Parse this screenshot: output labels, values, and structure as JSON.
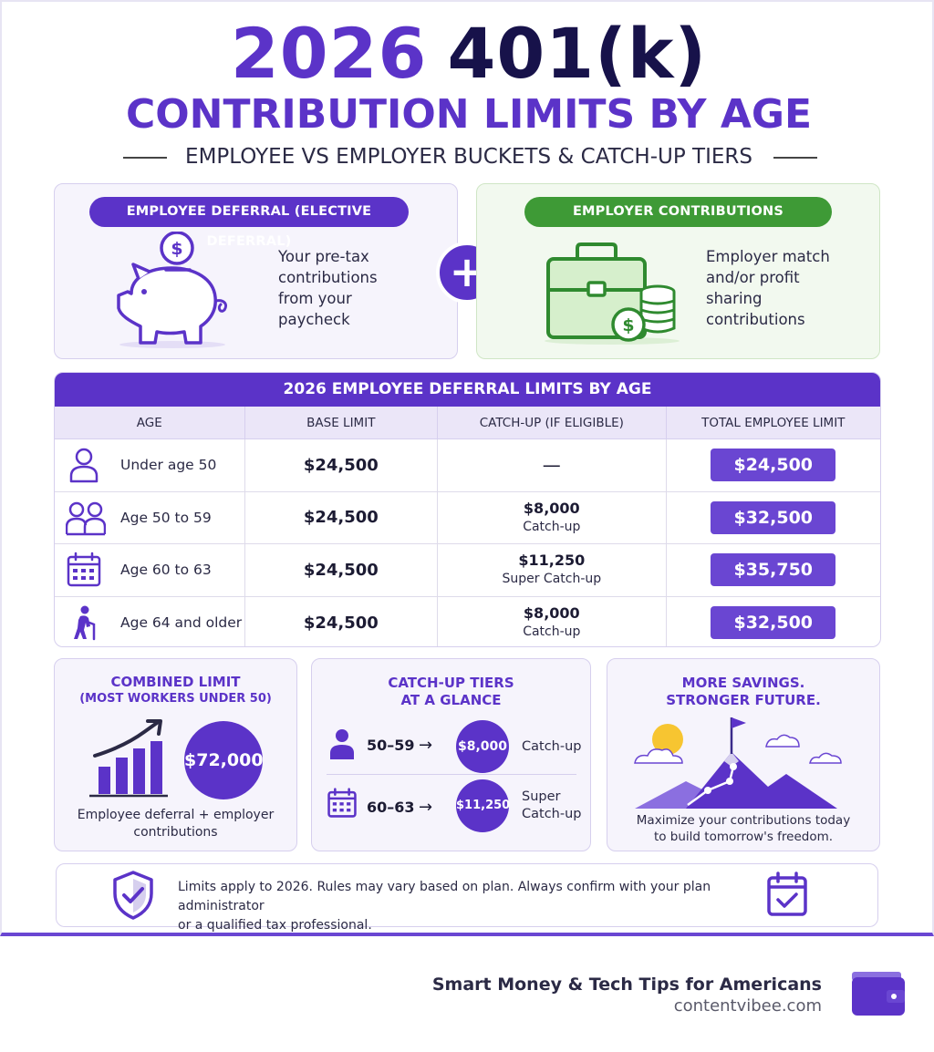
{
  "header": {
    "title_year": "2026",
    "title_main": "401(k)",
    "subtitle": "CONTRIBUTION LIMITS BY AGE",
    "tagline": "EMPLOYEE VS EMPLOYER BUCKETS & CATCH-UP TIERS"
  },
  "buckets": {
    "employee": {
      "pill": "EMPLOYEE DEFERRAL (ELECTIVE DEFERRAL)",
      "lines": [
        "Your pre-tax",
        "contributions",
        "from your",
        "paycheck"
      ],
      "icon": "piggy-bank-icon"
    },
    "plus_symbol": "+",
    "employer": {
      "pill": "EMPLOYER CONTRIBUTIONS",
      "lines": [
        "Employer match",
        "and/or profit",
        "sharing",
        "contributions"
      ],
      "icon": "briefcase-coins-icon"
    }
  },
  "table": {
    "title": "2026 EMPLOYEE DEFERRAL LIMITS BY AGE",
    "columns": [
      "AGE",
      "BASE LIMIT",
      "CATCH-UP (IF ELIGIBLE)",
      "TOTAL EMPLOYEE LIMIT"
    ],
    "rows": [
      {
        "age": "Under age 50",
        "base": "$24,500",
        "catch_amount": "—",
        "catch_label": "",
        "total": "$24,500",
        "icon": "person-icon"
      },
      {
        "age": "Age 50 to 59",
        "base": "$24,500",
        "catch_amount": "$8,000",
        "catch_label": "Catch-up",
        "total": "$32,500",
        "icon": "two-people-icon"
      },
      {
        "age": "Age 60 to 63",
        "base": "$24,500",
        "catch_amount": "$11,250",
        "catch_label": "Super Catch-up",
        "total": "$35,750",
        "icon": "calendar-icon"
      },
      {
        "age": "Age 64 and older",
        "base": "$24,500",
        "catch_amount": "$8,000",
        "catch_label": "Catch-up",
        "total": "$32,500",
        "icon": "elder-with-cane-icon"
      }
    ]
  },
  "combined": {
    "title": "COMBINED LIMIT",
    "subtitle": "(MOST WORKERS UNDER 50)",
    "amount": "$72,000",
    "note_line1": "Employee deferral + employer",
    "note_line2": "contributions"
  },
  "tiers": {
    "title_line1": "CATCH-UP TIERS",
    "title_line2": "AT A GLANCE",
    "arrow": "→",
    "items": [
      {
        "range": "50–59",
        "amount": "$8,000",
        "label_line1": "Catch-up",
        "label_line2": "",
        "icon": "person-icon"
      },
      {
        "range": "60–63",
        "amount": "$11,250",
        "label_line1": "Super",
        "label_line2": "Catch-up",
        "icon": "calendar-icon"
      }
    ]
  },
  "savings": {
    "title_line1": "MORE SAVINGS.",
    "title_line2": "STRONGER FUTURE.",
    "note_line1": "Maximize your contributions today",
    "note_line2": "to build tomorrow's freedom."
  },
  "disclaimer": {
    "line1": "Limits apply to 2026. Rules may vary based on plan. Always confirm with your plan administrator",
    "line2": "or a qualified tax professional."
  },
  "footer": {
    "brand_tagline": "Smart Money & Tech Tips for Americans",
    "site": "contentvibee.com"
  },
  "colors": {
    "primary_purple": "#5b33c8",
    "navy": "#17124a",
    "green": "#3e9a36"
  }
}
